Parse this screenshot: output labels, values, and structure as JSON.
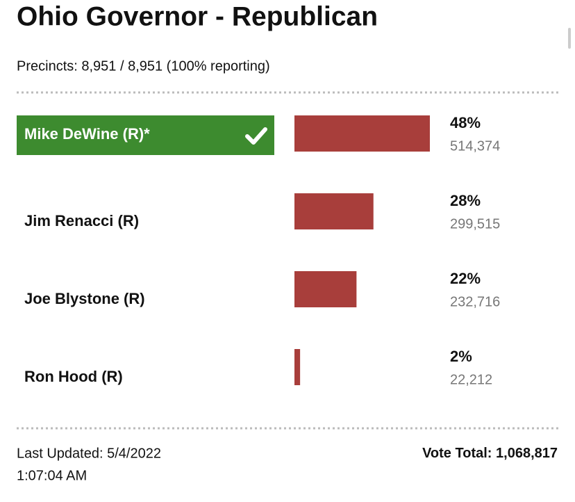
{
  "chart_data": {
    "type": "bar",
    "title": "Ohio Governor - Republican",
    "subtitle": "Precincts: 8,951 / 8,951 (100% reporting)",
    "categories": [
      "Mike DeWine (R)*",
      "Jim Renacci (R)",
      "Joe Blystone (R)",
      "Ron Hood (R)"
    ],
    "values": [
      48,
      28,
      22,
      2
    ],
    "value_labels": [
      "48%",
      "28%",
      "22%",
      "2%"
    ],
    "votes": [
      "514,374",
      "299,515",
      "232,716",
      "22,212"
    ],
    "color": "#a83e3b",
    "highlight": 0,
    "highlight_color": "#3d8b2f",
    "xlim": [
      0,
      48
    ],
    "updated": "Last Updated: 5/4/2022",
    "updated_time": "1:07:04 AM",
    "total_label": "Vote Total:",
    "total": "1,068,817"
  }
}
